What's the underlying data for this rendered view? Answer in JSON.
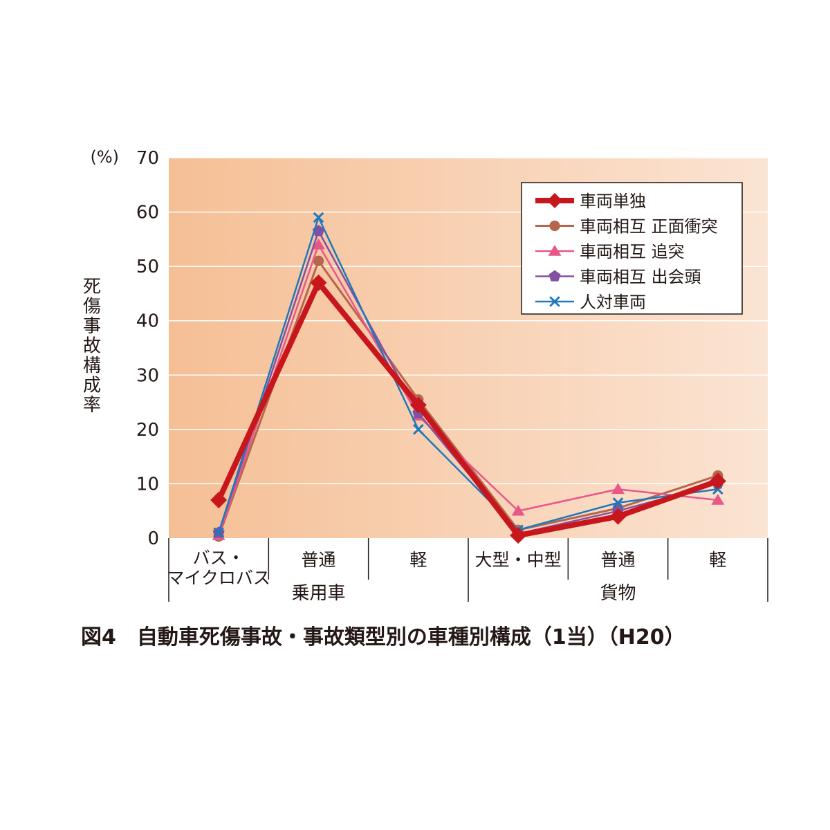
{
  "caption": "図4　自動車死傷事故・事故類型別の車種別構成（1当）（H20）",
  "chart_data": {
    "type": "line",
    "title": "",
    "ylabel": "死傷事故構成率",
    "yunit": "(%)",
    "ylim": [
      0,
      70
    ],
    "yticks": [
      0,
      10,
      20,
      30,
      40,
      50,
      60,
      70
    ],
    "grid": true,
    "legend_position": "top-right",
    "categories": [
      "バス・\nマイクロバス",
      "普通",
      "軽",
      "大型・中型",
      "普通",
      "軽"
    ],
    "groups": [
      {
        "label": "乗用車",
        "span": [
          0,
          2
        ]
      },
      {
        "label": "貨物",
        "span": [
          3,
          5
        ]
      }
    ],
    "series": [
      {
        "name": "車両単独",
        "color": "#c8161d",
        "marker": "diamond",
        "width": 8,
        "values": [
          7.0,
          47.0,
          24.5,
          0.5,
          4.0,
          10.5
        ]
      },
      {
        "name": "車両相互 正面衝突",
        "color": "#b4674d",
        "marker": "circle",
        "width": 3,
        "values": [
          0.3,
          51.0,
          25.5,
          1.5,
          5.5,
          11.5
        ]
      },
      {
        "name": "車両相互 追突",
        "color": "#e8578a",
        "marker": "triangle",
        "width": 2.5,
        "values": [
          0.5,
          54.0,
          22.5,
          5.0,
          9.0,
          7.0
        ]
      },
      {
        "name": "車両相互 出会頭",
        "color": "#8250a0",
        "marker": "pentagon",
        "width": 2.5,
        "values": [
          1.0,
          56.5,
          23.0,
          0.8,
          5.0,
          10.0
        ]
      },
      {
        "name": "人対車両",
        "color": "#1e78bc",
        "marker": "x",
        "width": 2.5,
        "values": [
          1.0,
          59.0,
          20.0,
          1.5,
          6.5,
          9.0
        ]
      }
    ]
  }
}
